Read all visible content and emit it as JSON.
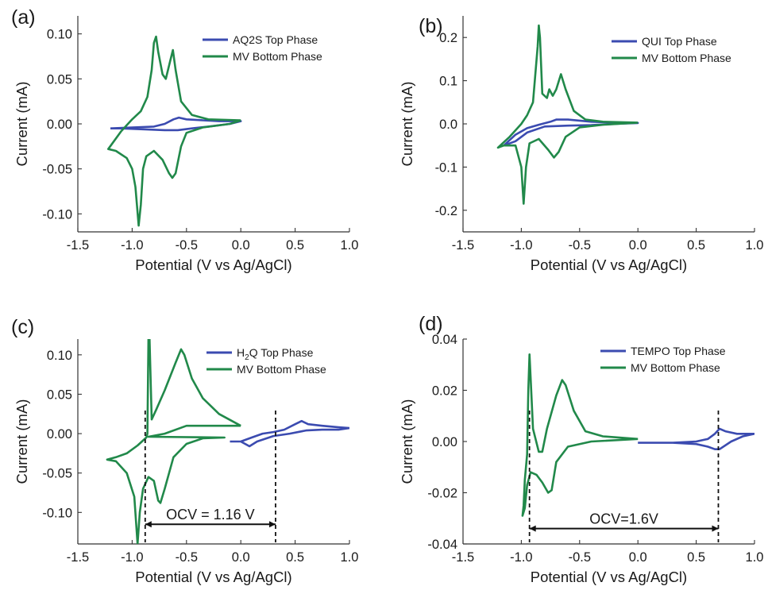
{
  "figure": {
    "panels": [
      {
        "label": "(a)"
      },
      {
        "label": "(b)"
      },
      {
        "label": "(c)"
      },
      {
        "label": "(d)"
      }
    ]
  },
  "chart_data": [
    {
      "type": "line",
      "panel": "(a)",
      "xlabel": "Potential (V vs Ag/AgCl)",
      "ylabel": "Current (mA)",
      "xlim": [
        -1.5,
        1.0
      ],
      "ylim": [
        -0.12,
        0.12
      ],
      "xticks": [
        "-1.5",
        "-1.0",
        "-0.5",
        "0.0",
        "0.5",
        "1.0"
      ],
      "yticks": [
        "-0.10",
        "-0.05",
        "0.00",
        "0.05",
        "0.10"
      ],
      "ytick_values": [
        -0.1,
        -0.05,
        0.0,
        0.05,
        0.1
      ],
      "legend_position": "top-right",
      "series": [
        {
          "name": "AQ2S Top Phase",
          "label_sub": "",
          "label_rest": "",
          "color": "#3b4bb0",
          "points": [
            [
              -1.2,
              -0.005
            ],
            [
              -1.0,
              -0.004
            ],
            [
              -0.8,
              -0.003
            ],
            [
              -0.7,
              0.0
            ],
            [
              -0.62,
              0.005
            ],
            [
              -0.57,
              0.007
            ],
            [
              -0.5,
              0.005
            ],
            [
              -0.35,
              0.004
            ],
            [
              -0.2,
              0.003
            ],
            [
              0.0,
              0.003
            ],
            [
              -0.1,
              0.0
            ],
            [
              -0.3,
              -0.003
            ],
            [
              -0.45,
              -0.005
            ],
            [
              -0.58,
              -0.007
            ],
            [
              -0.7,
              -0.007
            ],
            [
              -0.9,
              -0.006
            ],
            [
              -1.1,
              -0.005
            ],
            [
              -1.2,
              -0.005
            ]
          ]
        },
        {
          "name": "MV Bottom Phase",
          "label_sub": "",
          "label_rest": "",
          "color": "#21894a",
          "points": [
            [
              0.0,
              0.004
            ],
            [
              -0.3,
              0.005
            ],
            [
              -0.45,
              0.01
            ],
            [
              -0.55,
              0.025
            ],
            [
              -0.6,
              0.06
            ],
            [
              -0.625,
              0.082
            ],
            [
              -0.65,
              0.07
            ],
            [
              -0.69,
              0.05
            ],
            [
              -0.72,
              0.055
            ],
            [
              -0.76,
              0.08
            ],
            [
              -0.78,
              0.097
            ],
            [
              -0.8,
              0.09
            ],
            [
              -0.82,
              0.06
            ],
            [
              -0.86,
              0.03
            ],
            [
              -0.92,
              0.014
            ],
            [
              -1.0,
              0.005
            ],
            [
              -1.1,
              -0.008
            ],
            [
              -1.22,
              -0.028
            ],
            [
              -1.15,
              -0.03
            ],
            [
              -1.05,
              -0.038
            ],
            [
              -1.0,
              -0.05
            ],
            [
              -0.97,
              -0.07
            ],
            [
              -0.94,
              -0.113
            ],
            [
              -0.92,
              -0.09
            ],
            [
              -0.9,
              -0.05
            ],
            [
              -0.87,
              -0.036
            ],
            [
              -0.8,
              -0.03
            ],
            [
              -0.72,
              -0.04
            ],
            [
              -0.66,
              -0.055
            ],
            [
              -0.63,
              -0.06
            ],
            [
              -0.6,
              -0.055
            ],
            [
              -0.55,
              -0.025
            ],
            [
              -0.5,
              -0.01
            ],
            [
              -0.35,
              -0.004
            ],
            [
              -0.1,
              0.0
            ],
            [
              0.0,
              0.004
            ]
          ]
        }
      ]
    },
    {
      "type": "line",
      "panel": "(b)",
      "xlabel": "Potential (V vs Ag/AgCl)",
      "ylabel": "Current (mA)",
      "xlim": [
        -1.5,
        1.0
      ],
      "ylim": [
        -0.25,
        0.25
      ],
      "xticks": [
        "-1.5",
        "-1.0",
        "-0.5",
        "0.0",
        "0.5",
        "1.0"
      ],
      "yticks": [
        "-0.2",
        "-0.1",
        "0.0",
        "0.1",
        "0.2"
      ],
      "ytick_values": [
        -0.2,
        -0.1,
        0.0,
        0.1,
        0.2
      ],
      "legend_position": "top-right",
      "series": [
        {
          "name": "QUI Top Phase",
          "label_sub": "",
          "label_rest": "",
          "color": "#3b4bb0",
          "points": [
            [
              -1.15,
              -0.05
            ],
            [
              -1.05,
              -0.025
            ],
            [
              -0.95,
              -0.01
            ],
            [
              -0.85,
              -0.002
            ],
            [
              -0.75,
              0.005
            ],
            [
              -0.7,
              0.01
            ],
            [
              -0.6,
              0.01
            ],
            [
              -0.4,
              0.005
            ],
            [
              -0.2,
              0.003
            ],
            [
              0.0,
              0.002
            ],
            [
              -0.2,
              0.0
            ],
            [
              -0.4,
              -0.003
            ],
            [
              -0.6,
              -0.004
            ],
            [
              -0.8,
              -0.006
            ],
            [
              -0.95,
              -0.02
            ],
            [
              -1.05,
              -0.04
            ],
            [
              -1.15,
              -0.05
            ]
          ]
        },
        {
          "name": "MV Bottom Phase",
          "label_sub": "",
          "label_rest": "",
          "color": "#21894a",
          "points": [
            [
              0.0,
              0.003
            ],
            [
              -0.3,
              0.005
            ],
            [
              -0.45,
              0.01
            ],
            [
              -0.55,
              0.03
            ],
            [
              -0.62,
              0.08
            ],
            [
              -0.66,
              0.115
            ],
            [
              -0.7,
              0.08
            ],
            [
              -0.73,
              0.065
            ],
            [
              -0.76,
              0.08
            ],
            [
              -0.78,
              0.06
            ],
            [
              -0.82,
              0.07
            ],
            [
              -0.84,
              0.2
            ],
            [
              -0.85,
              0.228
            ],
            [
              -0.86,
              0.18
            ],
            [
              -0.9,
              0.05
            ],
            [
              -0.95,
              0.02
            ],
            [
              -1.0,
              0.0
            ],
            [
              -1.1,
              -0.03
            ],
            [
              -1.2,
              -0.055
            ],
            [
              -1.15,
              -0.05
            ],
            [
              -1.05,
              -0.05
            ],
            [
              -1.0,
              -0.1
            ],
            [
              -0.98,
              -0.185
            ],
            [
              -0.96,
              -0.1
            ],
            [
              -0.93,
              -0.045
            ],
            [
              -0.85,
              -0.035
            ],
            [
              -0.77,
              -0.06
            ],
            [
              -0.72,
              -0.078
            ],
            [
              -0.68,
              -0.065
            ],
            [
              -0.62,
              -0.03
            ],
            [
              -0.5,
              -0.008
            ],
            [
              -0.3,
              -0.002
            ],
            [
              0.0,
              0.003
            ]
          ]
        }
      ]
    },
    {
      "type": "line",
      "panel": "(c)",
      "xlabel": "Potential (V vs Ag/AgCl)",
      "ylabel": "Current (mA)",
      "xlim": [
        -1.5,
        1.0
      ],
      "ylim": [
        -0.14,
        0.12
      ],
      "xticks": [
        "-1.5",
        "-1.0",
        "-0.5",
        "0.0",
        "0.5",
        "1.0"
      ],
      "yticks": [
        "-0.10",
        "-0.05",
        "0.00",
        "0.05",
        "0.10"
      ],
      "ytick_values": [
        -0.1,
        -0.05,
        0.0,
        0.05,
        0.1
      ],
      "legend_position": "top-right",
      "annotation": {
        "text": "OCV = 1.16 V",
        "x_start": -0.88,
        "x_end": 0.32,
        "y": -0.115
      },
      "series": [
        {
          "name": "H2Q Top Phase",
          "label_sub": "2",
          "label_rest": "Q Top Phase",
          "color": "#3b4bb0",
          "points": [
            [
              -0.1,
              -0.01
            ],
            [
              0.0,
              -0.01
            ],
            [
              0.1,
              -0.005
            ],
            [
              0.2,
              0.0
            ],
            [
              0.3,
              0.002
            ],
            [
              0.4,
              0.005
            ],
            [
              0.5,
              0.012
            ],
            [
              0.56,
              0.016
            ],
            [
              0.62,
              0.012
            ],
            [
              0.75,
              0.01
            ],
            [
              0.9,
              0.008
            ],
            [
              1.0,
              0.007
            ],
            [
              0.9,
              0.005
            ],
            [
              0.75,
              0.005
            ],
            [
              0.6,
              0.004
            ],
            [
              0.45,
              0.0
            ],
            [
              0.3,
              -0.003
            ],
            [
              0.15,
              -0.01
            ],
            [
              0.08,
              -0.016
            ],
            [
              0.0,
              -0.01
            ],
            [
              -0.1,
              -0.01
            ]
          ]
        },
        {
          "name": "MV Bottom Phase",
          "label_sub": "",
          "label_rest": "",
          "color": "#21894a",
          "points": [
            [
              0.0,
              0.01
            ],
            [
              -0.2,
              0.025
            ],
            [
              -0.35,
              0.045
            ],
            [
              -0.45,
              0.07
            ],
            [
              -0.52,
              0.1
            ],
            [
              -0.55,
              0.107
            ],
            [
              -0.6,
              0.09
            ],
            [
              -0.7,
              0.055
            ],
            [
              -0.78,
              0.03
            ],
            [
              -0.82,
              0.018
            ],
            [
              -0.84,
              0.12
            ],
            [
              -0.85,
              0.12
            ],
            [
              -0.86,
              0.0
            ],
            [
              -0.87,
              -0.005
            ],
            [
              -0.95,
              -0.015
            ],
            [
              -1.05,
              -0.025
            ],
            [
              -1.15,
              -0.03
            ],
            [
              -1.23,
              -0.033
            ],
            [
              -1.15,
              -0.035
            ],
            [
              -1.05,
              -0.05
            ],
            [
              -0.98,
              -0.08
            ],
            [
              -0.95,
              -0.14
            ],
            [
              -0.93,
              -0.1
            ],
            [
              -0.9,
              -0.07
            ],
            [
              -0.85,
              -0.055
            ],
            [
              -0.8,
              -0.06
            ],
            [
              -0.76,
              -0.085
            ],
            [
              -0.74,
              -0.088
            ],
            [
              -0.7,
              -0.07
            ],
            [
              -0.62,
              -0.03
            ],
            [
              -0.5,
              -0.013
            ],
            [
              -0.35,
              -0.006
            ],
            [
              -0.15,
              -0.005
            ],
            [
              -0.85,
              -0.004
            ],
            [
              -0.7,
              0.0
            ],
            [
              -0.5,
              0.01
            ],
            [
              -0.3,
              0.01
            ],
            [
              0.0,
              0.01
            ]
          ]
        }
      ]
    },
    {
      "type": "line",
      "panel": "(d)",
      "xlabel": "Potential (V vs Ag/AgCl)",
      "ylabel": "Current (mA)",
      "xlim": [
        -1.5,
        1.0
      ],
      "ylim": [
        -0.04,
        0.04
      ],
      "xticks": [
        "-1.5",
        "-1.0",
        "-0.5",
        "0.0",
        "0.5",
        "1.0"
      ],
      "yticks": [
        "-0.04",
        "-0.02",
        "0.00",
        "0.02",
        "0.04"
      ],
      "ytick_values": [
        -0.04,
        -0.02,
        0.0,
        0.02,
        0.04
      ],
      "legend_position": "top-right",
      "annotation": {
        "text": "OCV=1.6V",
        "x_start": -0.93,
        "x_end": 0.69,
        "y": -0.034
      },
      "series": [
        {
          "name": "TEMPO Top Phase",
          "label_sub": "",
          "label_rest": "",
          "color": "#3b4bb0",
          "points": [
            [
              0.0,
              -0.0005
            ],
            [
              0.3,
              -0.0005
            ],
            [
              0.5,
              0.0
            ],
            [
              0.6,
              0.001
            ],
            [
              0.66,
              0.003
            ],
            [
              0.7,
              0.005
            ],
            [
              0.75,
              0.004
            ],
            [
              0.85,
              0.003
            ],
            [
              1.0,
              0.003
            ],
            [
              0.9,
              0.002
            ],
            [
              0.8,
              0.0
            ],
            [
              0.7,
              -0.003
            ],
            [
              0.66,
              -0.003
            ],
            [
              0.6,
              -0.002
            ],
            [
              0.5,
              -0.001
            ],
            [
              0.3,
              -0.0005
            ],
            [
              0.0,
              -0.0005
            ]
          ]
        },
        {
          "name": "MV Bottom Phase",
          "label_sub": "",
          "label_rest": "",
          "color": "#21894a",
          "points": [
            [
              0.0,
              0.001
            ],
            [
              -0.3,
              0.002
            ],
            [
              -0.45,
              0.004
            ],
            [
              -0.55,
              0.012
            ],
            [
              -0.62,
              0.022
            ],
            [
              -0.65,
              0.024
            ],
            [
              -0.7,
              0.018
            ],
            [
              -0.78,
              0.005
            ],
            [
              -0.82,
              -0.004
            ],
            [
              -0.85,
              -0.004
            ],
            [
              -0.9,
              0.005
            ],
            [
              -0.92,
              0.025
            ],
            [
              -0.93,
              0.034
            ],
            [
              -0.94,
              0.02
            ],
            [
              -0.95,
              -0.005
            ],
            [
              -0.97,
              -0.015
            ],
            [
              -0.98,
              -0.025
            ],
            [
              -0.99,
              -0.029
            ],
            [
              -0.97,
              -0.026
            ],
            [
              -0.95,
              -0.017
            ],
            [
              -0.92,
              -0.012
            ],
            [
              -0.87,
              -0.013
            ],
            [
              -0.82,
              -0.016
            ],
            [
              -0.77,
              -0.02
            ],
            [
              -0.74,
              -0.019
            ],
            [
              -0.7,
              -0.008
            ],
            [
              -0.6,
              -0.002
            ],
            [
              -0.4,
              0.0
            ],
            [
              0.0,
              0.001
            ]
          ]
        }
      ]
    }
  ]
}
